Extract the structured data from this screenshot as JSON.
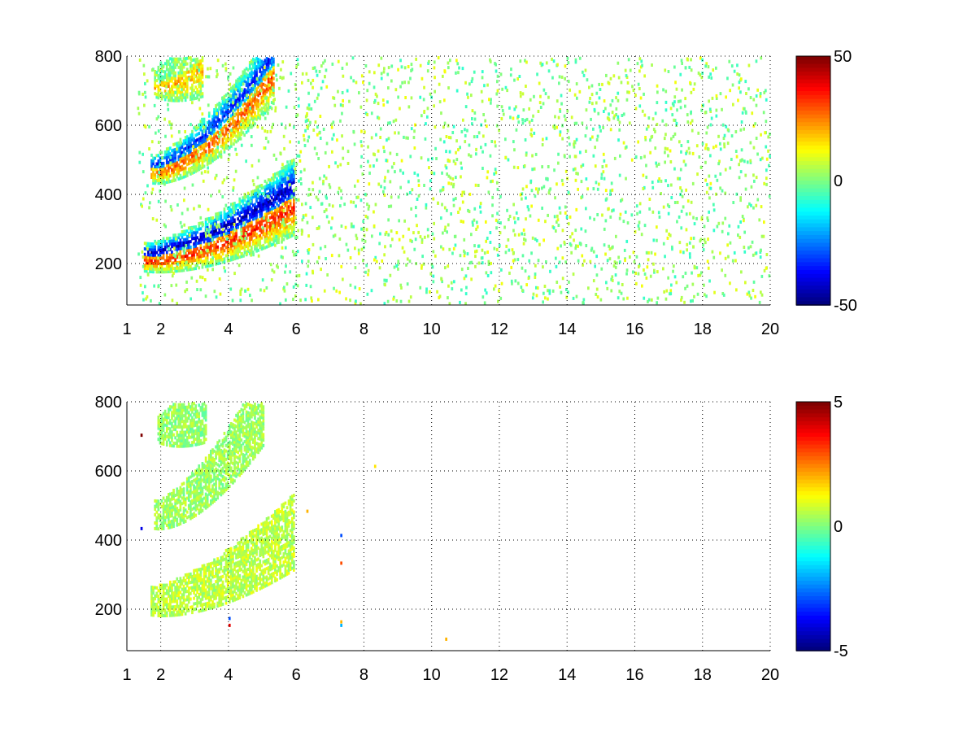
{
  "chart_data": [
    {
      "type": "heatmap",
      "title": "",
      "xlabel": "",
      "ylabel": "",
      "xlim": [
        1,
        20
      ],
      "ylim": [
        80,
        800
      ],
      "xticks": [
        1,
        2,
        4,
        6,
        8,
        10,
        12,
        14,
        16,
        18,
        20
      ],
      "yticks": [
        200,
        400,
        600,
        800
      ],
      "xgrid_lines": [
        2,
        4,
        6,
        8,
        10,
        12,
        14,
        16,
        18
      ],
      "ygrid_lines": [
        200,
        400,
        600
      ],
      "grid": true,
      "colormap": "jet",
      "colorbar": {
        "min": -50,
        "max": 50,
        "ticks": [
          -50,
          0,
          50
        ]
      },
      "features": [
        {
          "name": "lower-ridge",
          "x_range": [
            1.5,
            5.9
          ],
          "y_start": 215,
          "y_end": 390,
          "positive_lobe": 35,
          "negative_lobe": -45
        },
        {
          "name": "middle-ridge",
          "x_range": [
            1.7,
            5.3
          ],
          "y_start": 470,
          "y_end": 770,
          "positive_lobe": 30,
          "negative_lobe": -35
        },
        {
          "name": "upper-patch",
          "x_range": [
            1.8,
            3.2
          ],
          "y_start": 720,
          "y_end": 790,
          "positive_lobe": 20,
          "negative_lobe": 0
        }
      ],
      "noise_x_range": [
        6,
        20
      ],
      "noise_value_range": [
        -8,
        12
      ]
    },
    {
      "type": "heatmap",
      "title": "",
      "xlabel": "",
      "ylabel": "",
      "xlim": [
        1,
        20
      ],
      "ylim": [
        80,
        800
      ],
      "xticks": [
        1,
        2,
        4,
        6,
        8,
        10,
        12,
        14,
        16,
        18,
        20
      ],
      "yticks": [
        200,
        400,
        600,
        800
      ],
      "xgrid_lines": [
        2,
        4,
        6,
        8,
        10,
        12,
        14,
        16,
        18
      ],
      "ygrid_lines": [
        200,
        400,
        600
      ],
      "grid": true,
      "colormap": "jet",
      "colorbar": {
        "min": -5,
        "max": 5,
        "ticks": [
          -5,
          0,
          5
        ]
      },
      "features": [
        {
          "name": "lower-ridge",
          "x_range": [
            1.7,
            5.9
          ],
          "y_start": 220,
          "y_end": 420,
          "value": 0.6
        },
        {
          "name": "middle-ridge",
          "x_range": [
            1.8,
            5.0
          ],
          "y_start": 470,
          "y_end": 780,
          "value": 0.3
        },
        {
          "name": "upper-patch",
          "x_range": [
            1.9,
            3.3
          ],
          "y_start": 720,
          "y_end": 790,
          "value": 0.2
        }
      ],
      "outliers": [
        {
          "x": 1.4,
          "y": 700,
          "value": 5
        },
        {
          "x": 1.4,
          "y": 430,
          "value": -4
        },
        {
          "x": 4.0,
          "y": 150,
          "value": 4
        },
        {
          "x": 4.0,
          "y": 170,
          "value": -3
        },
        {
          "x": 7.3,
          "y": 160,
          "value": 2
        },
        {
          "x": 7.3,
          "y": 150,
          "value": -2
        },
        {
          "x": 7.3,
          "y": 410,
          "value": -3
        },
        {
          "x": 7.3,
          "y": 330,
          "value": 3
        },
        {
          "x": 8.3,
          "y": 610,
          "value": 1.5
        },
        {
          "x": 10.4,
          "y": 110,
          "value": 2
        },
        {
          "x": 6.3,
          "y": 480,
          "value": 2
        }
      ]
    }
  ]
}
